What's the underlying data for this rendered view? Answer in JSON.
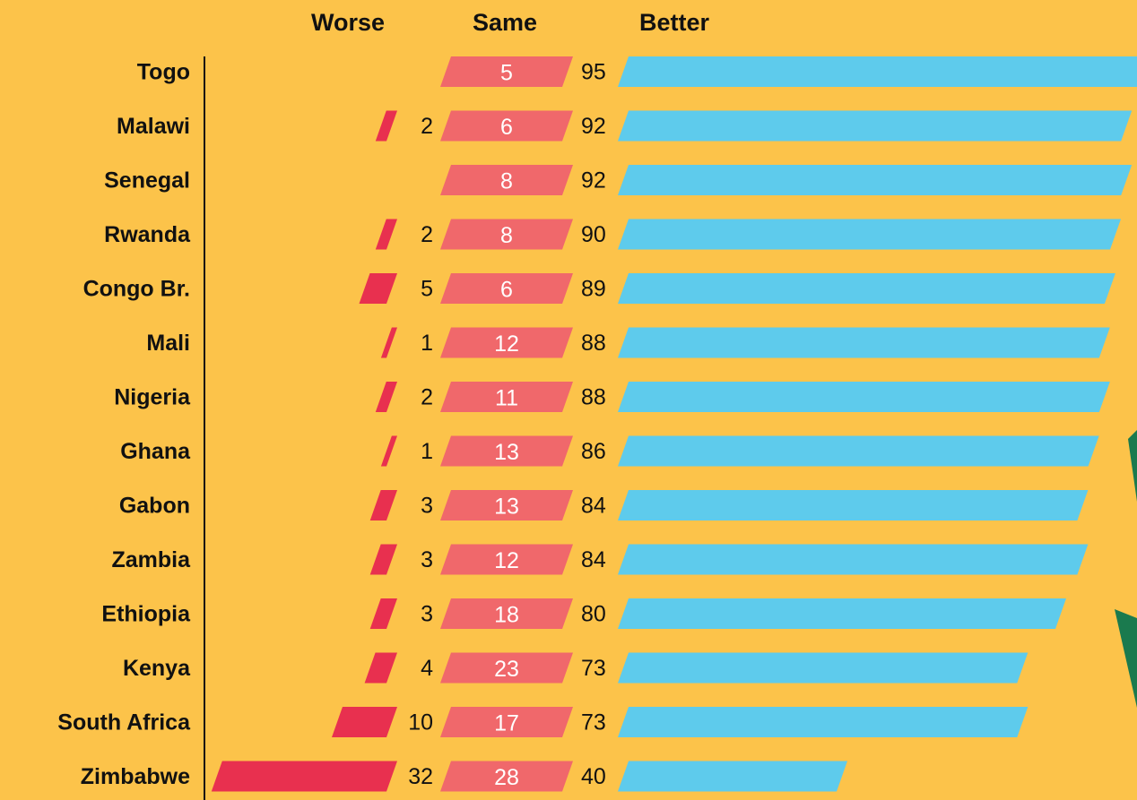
{
  "chart_data": {
    "type": "bar",
    "categories": [
      "Togo",
      "Malawi",
      "Senegal",
      "Rwanda",
      "Congo Br.",
      "Mali",
      "Nigeria",
      "Ghana",
      "Gabon",
      "Zambia",
      "Ethiopia",
      "Kenya",
      "South Africa",
      "Zimbabwe"
    ],
    "series": [
      {
        "name": "Worse",
        "color": "#e8304f",
        "values": [
          null,
          2,
          null,
          2,
          5,
          1,
          2,
          1,
          3,
          3,
          3,
          4,
          10,
          32
        ]
      },
      {
        "name": "Same",
        "color": "#f0686b",
        "values": [
          5,
          6,
          8,
          8,
          6,
          12,
          11,
          13,
          13,
          12,
          18,
          23,
          17,
          28
        ]
      },
      {
        "name": "Better",
        "color": "#5ecbec",
        "values": [
          95,
          92,
          92,
          90,
          89,
          88,
          88,
          86,
          84,
          84,
          80,
          73,
          73,
          40
        ]
      }
    ]
  }
}
